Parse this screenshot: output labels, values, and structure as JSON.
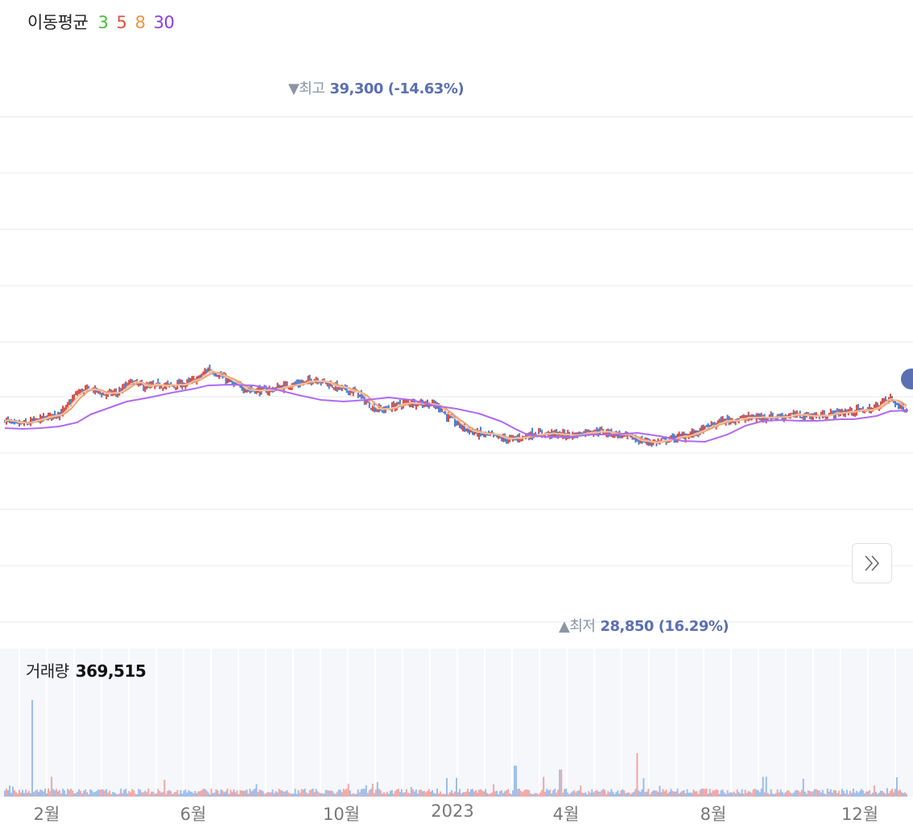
{
  "legend": {
    "title": "이동평균",
    "ma3": "3",
    "ma5": "5",
    "ma8": "8",
    "ma30": "30",
    "colors": {
      "ma3": "#45c03a",
      "ma5": "#e0503e",
      "ma8": "#ef9440",
      "ma30": "#8a3ee8"
    }
  },
  "annotations": {
    "high_label": "▼최고",
    "high_value": "39,300 (-14.63%)",
    "low_label": "▲최저",
    "low_value": "28,850 (16.29%)"
  },
  "volume": {
    "label": "거래량",
    "value": "369,515"
  },
  "icons": {
    "scroll": "double-chevron-right-icon"
  },
  "colors": {
    "up": "#d9493f",
    "down": "#4a7fd1",
    "ma_fast": "#f1a070",
    "ma_slow": "#b06af0",
    "vol_up": "#f0a7a5",
    "vol_down": "#9dbde8"
  },
  "chart_data": {
    "type": "candlestick",
    "x_ticks": [
      "2월",
      "6월",
      "10월",
      "2023",
      "4월",
      "8월",
      "12월"
    ],
    "ylim": [
      28000,
      40000
    ],
    "grid": true,
    "high": {
      "value": 39300,
      "text": "39,300 (-14.63%)"
    },
    "low": {
      "value": 28850,
      "text": "28,850 (16.29%)"
    },
    "price_path": [
      [
        0,
        31900
      ],
      [
        2,
        31200
      ],
      [
        5,
        31400
      ],
      [
        8,
        31900
      ],
      [
        10,
        32300
      ],
      [
        13,
        32900
      ],
      [
        16,
        35200
      ],
      [
        19,
        35700
      ],
      [
        22,
        35000
      ],
      [
        25,
        35200
      ],
      [
        28,
        36600
      ],
      [
        31,
        35900
      ],
      [
        34,
        36100
      ],
      [
        37,
        36100
      ],
      [
        40,
        36300
      ],
      [
        43,
        37000
      ],
      [
        45,
        38200
      ],
      [
        48,
        37200
      ],
      [
        51,
        36100
      ],
      [
        54,
        35600
      ],
      [
        57,
        35400
      ],
      [
        60,
        35700
      ],
      [
        63,
        36200
      ],
      [
        66,
        36400
      ],
      [
        69,
        36900
      ],
      [
        72,
        36200
      ],
      [
        75,
        35600
      ],
      [
        78,
        35200
      ],
      [
        80,
        34000
      ],
      [
        82,
        33200
      ],
      [
        84,
        33100
      ],
      [
        87,
        33700
      ],
      [
        90,
        34000
      ],
      [
        93,
        33900
      ],
      [
        96,
        33500
      ],
      [
        98,
        32200
      ],
      [
        101,
        31000
      ],
      [
        104,
        30200
      ],
      [
        106,
        30000
      ],
      [
        108,
        29800
      ],
      [
        110,
        29500
      ],
      [
        112,
        29400
      ],
      [
        114,
        29600
      ],
      [
        117,
        30100
      ],
      [
        120,
        30100
      ],
      [
        123,
        30000
      ],
      [
        126,
        29900
      ],
      [
        129,
        30400
      ],
      [
        132,
        30400
      ],
      [
        135,
        30100
      ],
      [
        138,
        29700
      ],
      [
        141,
        29200
      ],
      [
        144,
        29000
      ],
      [
        147,
        29400
      ],
      [
        150,
        29800
      ],
      [
        153,
        30200
      ],
      [
        156,
        31000
      ],
      [
        159,
        31700
      ],
      [
        162,
        31900
      ],
      [
        165,
        32100
      ],
      [
        168,
        32200
      ],
      [
        171,
        32200
      ],
      [
        174,
        32400
      ],
      [
        177,
        32400
      ],
      [
        180,
        32300
      ],
      [
        183,
        32600
      ],
      [
        186,
        32800
      ],
      [
        189,
        33000
      ],
      [
        192,
        33100
      ],
      [
        194,
        34000
      ],
      [
        196,
        34500
      ],
      [
        198,
        33500
      ],
      [
        200,
        33100
      ]
    ],
    "ma30_path": [
      [
        0,
        30800
      ],
      [
        4,
        30700
      ],
      [
        8,
        30800
      ],
      [
        12,
        31000
      ],
      [
        16,
        31500
      ],
      [
        19,
        32500
      ],
      [
        23,
        33300
      ],
      [
        27,
        34100
      ],
      [
        32,
        34600
      ],
      [
        37,
        35200
      ],
      [
        42,
        35700
      ],
      [
        45,
        36100
      ],
      [
        50,
        36200
      ],
      [
        55,
        36100
      ],
      [
        60,
        35600
      ],
      [
        65,
        34900
      ],
      [
        70,
        34300
      ],
      [
        75,
        34100
      ],
      [
        80,
        34300
      ],
      [
        85,
        34600
      ],
      [
        90,
        34300
      ],
      [
        95,
        33600
      ],
      [
        100,
        33200
      ],
      [
        105,
        32600
      ],
      [
        110,
        31600
      ],
      [
        113,
        30700
      ],
      [
        116,
        29900
      ],
      [
        120,
        29700
      ],
      [
        125,
        29700
      ],
      [
        130,
        30000
      ],
      [
        135,
        30000
      ],
      [
        140,
        30200
      ],
      [
        145,
        29800
      ],
      [
        150,
        29200
      ],
      [
        155,
        29100
      ],
      [
        160,
        30000
      ],
      [
        164,
        31100
      ],
      [
        168,
        31700
      ],
      [
        172,
        31800
      ],
      [
        176,
        31700
      ],
      [
        180,
        31700
      ],
      [
        185,
        31900
      ],
      [
        188,
        31900
      ],
      [
        193,
        32300
      ],
      [
        196,
        32900
      ],
      [
        200,
        33000
      ]
    ],
    "volume": {
      "value": 369515,
      "spikes": [
        [
          6,
          1.0
        ],
        [
          113,
          0.32
        ],
        [
          123,
          0.28
        ],
        [
          140,
          0.45
        ]
      ],
      "base_level": 0.06
    }
  }
}
